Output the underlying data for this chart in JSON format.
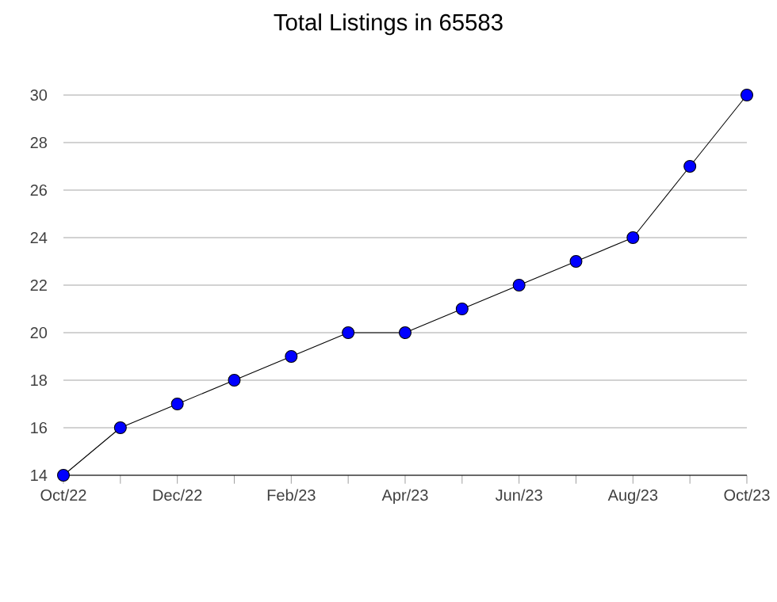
{
  "chart_data": {
    "type": "line",
    "title": "Total Listings in 65583",
    "categories": [
      "Oct/22",
      null,
      "Dec/22",
      null,
      "Feb/23",
      null,
      "Apr/23",
      null,
      "Jun/23",
      null,
      "Aug/23",
      null,
      "Oct/23"
    ],
    "values": [
      14,
      16,
      17,
      18,
      19,
      20,
      20,
      21,
      22,
      23,
      24,
      27,
      30
    ],
    "color": "#0000ff",
    "ylim": [
      14,
      30
    ],
    "yticks": [
      14,
      16,
      18,
      20,
      22,
      24,
      26,
      28,
      30
    ],
    "grid": "y",
    "marker": "circle",
    "line_style": "solid"
  }
}
